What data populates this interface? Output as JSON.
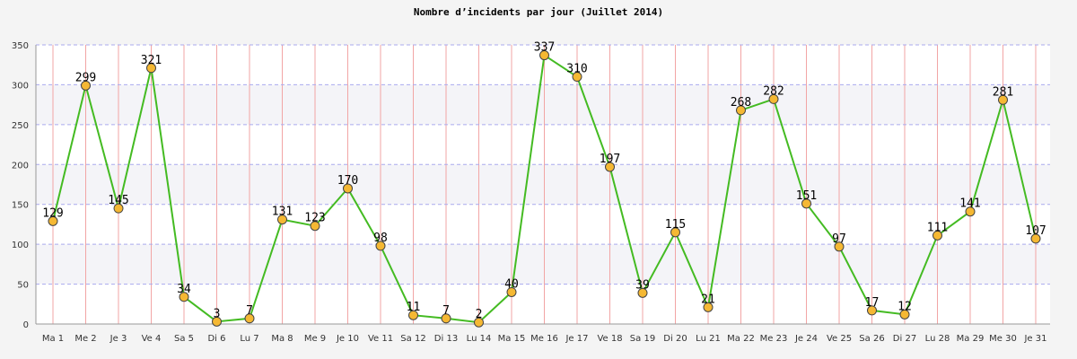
{
  "chart_data": {
    "type": "line",
    "title": "Nombre d’incidents par jour (Juillet 2014)",
    "xlabel": "",
    "ylabel": "",
    "ylim": [
      0,
      350
    ],
    "yticks": [
      0,
      50,
      100,
      150,
      200,
      250,
      300,
      350
    ],
    "grid": true,
    "legend": "none",
    "categories": [
      "Ma 1",
      "Me 2",
      "Je 3",
      "Ve 4",
      "Sa 5",
      "Di 6",
      "Lu 7",
      "Ma 8",
      "Me 9",
      "Je 10",
      "Ve 11",
      "Sa 12",
      "Di 13",
      "Lu 14",
      "Ma 15",
      "Me 16",
      "Je 17",
      "Ve 18",
      "Sa 19",
      "Di 20",
      "Lu 21",
      "Ma 22",
      "Me 23",
      "Je 24",
      "Ve 25",
      "Sa 26",
      "Di 27",
      "Lu 28",
      "Ma 29",
      "Me 30",
      "Je 31"
    ],
    "series": [
      {
        "values": [
          129,
          299,
          145,
          321,
          34,
          3,
          7,
          131,
          123,
          170,
          98,
          11,
          7,
          2,
          40,
          337,
          310,
          197,
          39,
          115,
          21,
          268,
          282,
          151,
          97,
          17,
          12,
          111,
          141,
          281,
          107
        ],
        "line_color": "#44bb22",
        "marker_color": "#f5b833"
      }
    ],
    "colors": {
      "plot_background": "#ffffff",
      "band_background": "#f4f4f8",
      "vertical_grid": "#f2a5a5",
      "horizontal_grid": "#aaaaee"
    }
  }
}
